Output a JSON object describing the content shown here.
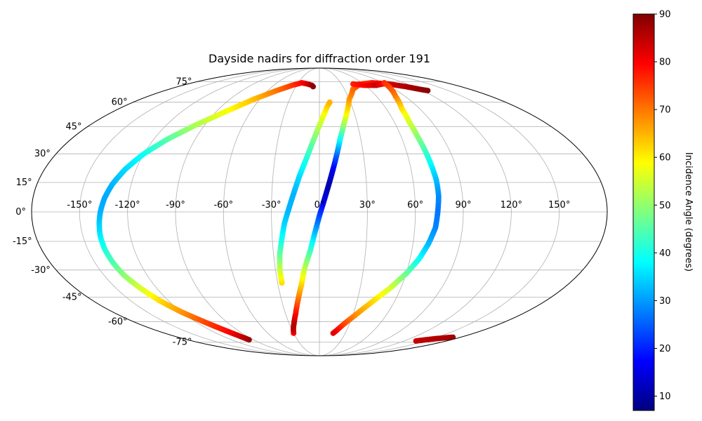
{
  "chart_data": {
    "type": "scatter",
    "projection": "mollweide",
    "title": "Dayside nadirs for diffraction order 191",
    "grid": true,
    "x_tick_labels": [
      "-150°",
      "-120°",
      "-90°",
      "-60°",
      "-30°",
      "0°",
      "30°",
      "60°",
      "90°",
      "120°",
      "150°"
    ],
    "x_tick_values": [
      -150,
      -120,
      -90,
      -60,
      -30,
      0,
      30,
      60,
      90,
      120,
      150
    ],
    "y_tick_labels": [
      "-75°",
      "-60°",
      "-45°",
      "-30°",
      "-15°",
      "0°",
      "15°",
      "30°",
      "45°",
      "60°",
      "75°"
    ],
    "y_tick_values": [
      -75,
      -60,
      -45,
      -30,
      -15,
      0,
      15,
      30,
      45,
      60,
      75
    ],
    "colorbar": {
      "label": "Incidence Angle (degrees)",
      "colormap": "jet",
      "range": [
        7,
        90
      ],
      "tick_values": [
        10,
        20,
        30,
        40,
        50,
        60,
        70,
        80,
        90
      ],
      "tick_labels": [
        "10",
        "20",
        "30",
        "40",
        "50",
        "60",
        "70",
        "80",
        "90"
      ]
    },
    "series": [
      {
        "points": [
          [
            -96,
            -73,
            88
          ],
          [
            -99,
            -70,
            84
          ],
          [
            -104,
            -66,
            79
          ],
          [
            -112,
            -60,
            74
          ],
          [
            -120,
            -54,
            68
          ],
          [
            -127,
            -47,
            62
          ],
          [
            -132,
            -40,
            56
          ],
          [
            -136,
            -33,
            50
          ],
          [
            -138,
            -26,
            45
          ],
          [
            -139,
            -19,
            41
          ],
          [
            -139,
            -12,
            37
          ],
          [
            -138,
            -5,
            34
          ],
          [
            -137,
            0,
            32
          ],
          [
            -135,
            7,
            31
          ],
          [
            -132,
            14,
            32
          ],
          [
            -127,
            22,
            35
          ],
          [
            -120,
            30,
            39
          ],
          [
            -110,
            38,
            45
          ],
          [
            -97,
            46,
            52
          ],
          [
            -82,
            54,
            58
          ],
          [
            -66,
            62,
            64
          ],
          [
            -50,
            68,
            70
          ],
          [
            -36,
            72,
            75
          ],
          [
            -25,
            74,
            79
          ],
          [
            -16,
            73,
            83
          ],
          [
            -10,
            72,
            87
          ],
          [
            -8,
            71,
            89
          ]
        ]
      },
      {
        "points": [
          [
            -27,
            -37,
            62
          ],
          [
            -27,
            -30,
            55
          ],
          [
            -26,
            -22,
            47
          ],
          [
            -24,
            -14,
            40
          ],
          [
            -22,
            -6,
            35
          ],
          [
            -19,
            2,
            32
          ],
          [
            -16,
            10,
            32
          ],
          [
            -13,
            18,
            35
          ],
          [
            -9,
            27,
            40
          ],
          [
            -5,
            36,
            46
          ],
          [
            -1,
            44,
            52
          ],
          [
            3,
            51,
            57
          ],
          [
            7,
            57,
            62
          ],
          [
            10,
            60,
            65
          ]
        ]
      },
      {
        "points": [
          [
            -30,
            -68,
            80
          ],
          [
            -28,
            -65,
            85
          ],
          [
            -25,
            -61,
            86
          ],
          [
            -21,
            -55,
            80
          ],
          [
            -17,
            -47,
            72
          ],
          [
            -13,
            -38,
            63
          ],
          [
            -10,
            -29,
            54
          ],
          [
            -6,
            -20,
            44
          ],
          [
            -3,
            -11,
            34
          ],
          [
            0,
            -2,
            24
          ],
          [
            3,
            6,
            16
          ],
          [
            6,
            14,
            10
          ],
          [
            9,
            22,
            16
          ],
          [
            12,
            30,
            26
          ],
          [
            15,
            38,
            38
          ],
          [
            19,
            46,
            50
          ],
          [
            24,
            54,
            60
          ],
          [
            30,
            62,
            67
          ],
          [
            40,
            69,
            71
          ],
          [
            55,
            73,
            74
          ],
          [
            75,
            74,
            78
          ],
          [
            95,
            73,
            83
          ],
          [
            110,
            71,
            86
          ],
          [
            120,
            69,
            88
          ],
          [
            126,
            68,
            89
          ]
        ]
      },
      {
        "points": [
          [
            46,
            73,
            77
          ],
          [
            60,
            72,
            80
          ],
          [
            75,
            72,
            84
          ],
          [
            86,
            73,
            80
          ],
          [
            92,
            74,
            76
          ],
          [
            80,
            64,
            70
          ],
          [
            74,
            56,
            62
          ],
          [
            72,
            48,
            56
          ],
          [
            72,
            40,
            50
          ],
          [
            73,
            32,
            44
          ],
          [
            74,
            24,
            38
          ],
          [
            75,
            16,
            33
          ],
          [
            75,
            8,
            29
          ],
          [
            74,
            0,
            27
          ],
          [
            73,
            -8,
            28
          ],
          [
            70,
            -16,
            32
          ],
          [
            66,
            -24,
            38
          ],
          [
            60,
            -32,
            46
          ],
          [
            52,
            -40,
            55
          ],
          [
            42,
            -48,
            62
          ],
          [
            32,
            -56,
            68
          ],
          [
            24,
            -62,
            74
          ],
          [
            19,
            -66,
            79
          ],
          [
            16,
            -68,
            82
          ]
        ]
      },
      {
        "points": [
          [
            137,
            -74,
            84
          ],
          [
            145,
            -73,
            85
          ],
          [
            155,
            -72,
            86
          ],
          [
            170,
            -71,
            87
          ]
        ]
      }
    ]
  }
}
